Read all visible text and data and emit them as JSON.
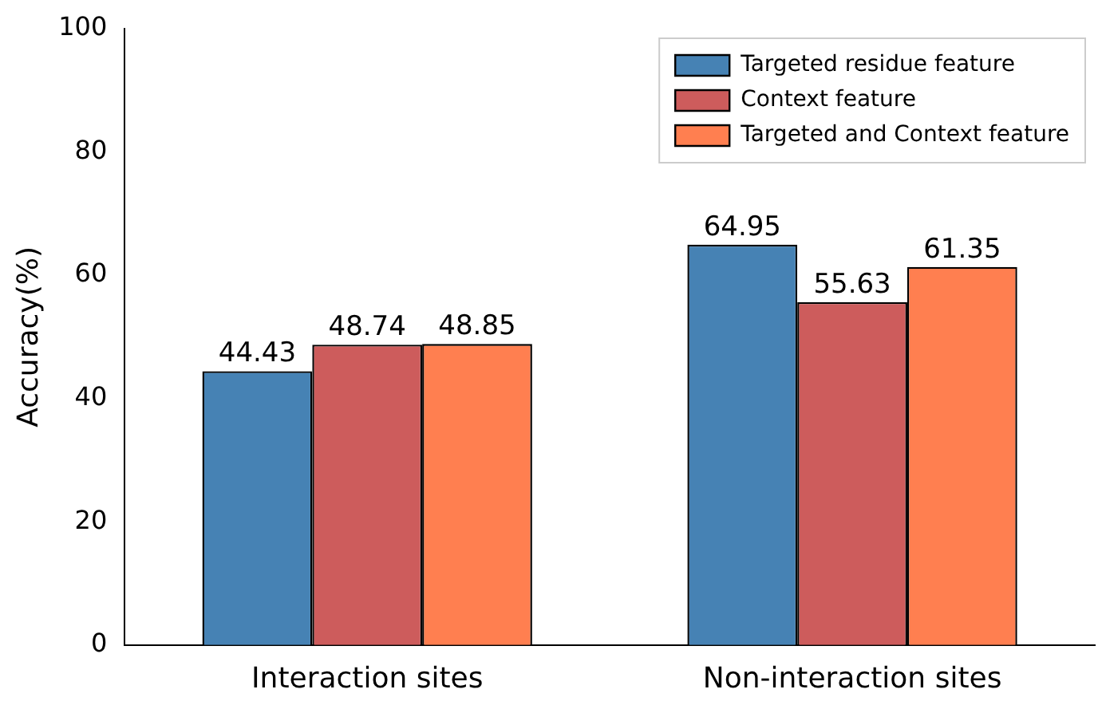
{
  "chart_data": {
    "type": "bar",
    "ylabel": "Accuracy(%)",
    "categories": [
      "Interaction sites",
      "Non-interaction sites"
    ],
    "series": [
      {
        "name": "Targeted residue feature",
        "color": "#4682b4",
        "values": [
          44.43,
          64.95
        ]
      },
      {
        "name": "Context feature",
        "color": "#cd5c5c",
        "values": [
          48.74,
          55.63
        ]
      },
      {
        "name": "Targeted and Context feature",
        "color": "#ff7f50",
        "values": [
          48.85,
          61.35
        ]
      }
    ],
    "ylim": [
      0,
      100
    ],
    "yticks": [
      0,
      20,
      40,
      60,
      80,
      100
    ],
    "grid": false,
    "legend": "top right",
    "data_labels": true
  }
}
